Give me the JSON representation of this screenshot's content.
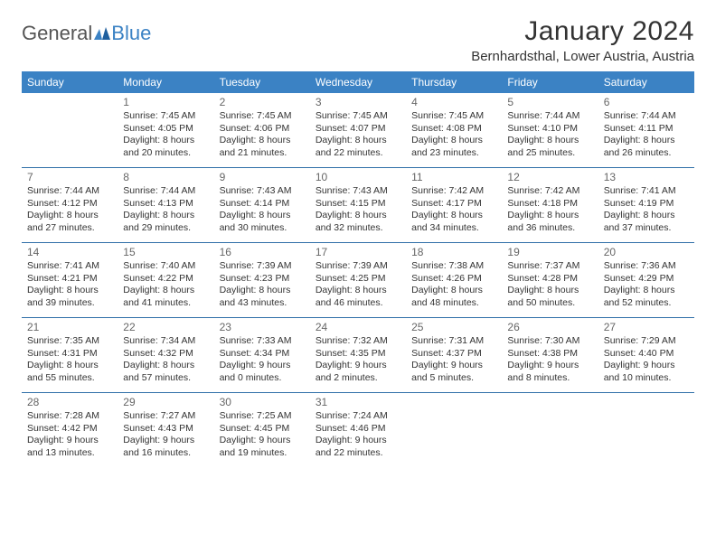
{
  "logo": {
    "part1": "General",
    "part2": "Blue"
  },
  "title": "January 2024",
  "location": "Bernhardsthal, Lower Austria, Austria",
  "colors": {
    "header_bg": "#3b82c4",
    "header_text": "#ffffff",
    "week_border": "#2f6fa8",
    "text": "#333333",
    "daynum": "#666666",
    "logo_gray": "#555555",
    "logo_blue": "#3b82c4",
    "page_bg": "#ffffff"
  },
  "day_names": [
    "Sunday",
    "Monday",
    "Tuesday",
    "Wednesday",
    "Thursday",
    "Friday",
    "Saturday"
  ],
  "weeks": [
    [
      null,
      {
        "n": "1",
        "sr": "Sunrise: 7:45 AM",
        "ss": "Sunset: 4:05 PM",
        "d1": "Daylight: 8 hours",
        "d2": "and 20 minutes."
      },
      {
        "n": "2",
        "sr": "Sunrise: 7:45 AM",
        "ss": "Sunset: 4:06 PM",
        "d1": "Daylight: 8 hours",
        "d2": "and 21 minutes."
      },
      {
        "n": "3",
        "sr": "Sunrise: 7:45 AM",
        "ss": "Sunset: 4:07 PM",
        "d1": "Daylight: 8 hours",
        "d2": "and 22 minutes."
      },
      {
        "n": "4",
        "sr": "Sunrise: 7:45 AM",
        "ss": "Sunset: 4:08 PM",
        "d1": "Daylight: 8 hours",
        "d2": "and 23 minutes."
      },
      {
        "n": "5",
        "sr": "Sunrise: 7:44 AM",
        "ss": "Sunset: 4:10 PM",
        "d1": "Daylight: 8 hours",
        "d2": "and 25 minutes."
      },
      {
        "n": "6",
        "sr": "Sunrise: 7:44 AM",
        "ss": "Sunset: 4:11 PM",
        "d1": "Daylight: 8 hours",
        "d2": "and 26 minutes."
      }
    ],
    [
      {
        "n": "7",
        "sr": "Sunrise: 7:44 AM",
        "ss": "Sunset: 4:12 PM",
        "d1": "Daylight: 8 hours",
        "d2": "and 27 minutes."
      },
      {
        "n": "8",
        "sr": "Sunrise: 7:44 AM",
        "ss": "Sunset: 4:13 PM",
        "d1": "Daylight: 8 hours",
        "d2": "and 29 minutes."
      },
      {
        "n": "9",
        "sr": "Sunrise: 7:43 AM",
        "ss": "Sunset: 4:14 PM",
        "d1": "Daylight: 8 hours",
        "d2": "and 30 minutes."
      },
      {
        "n": "10",
        "sr": "Sunrise: 7:43 AM",
        "ss": "Sunset: 4:15 PM",
        "d1": "Daylight: 8 hours",
        "d2": "and 32 minutes."
      },
      {
        "n": "11",
        "sr": "Sunrise: 7:42 AM",
        "ss": "Sunset: 4:17 PM",
        "d1": "Daylight: 8 hours",
        "d2": "and 34 minutes."
      },
      {
        "n": "12",
        "sr": "Sunrise: 7:42 AM",
        "ss": "Sunset: 4:18 PM",
        "d1": "Daylight: 8 hours",
        "d2": "and 36 minutes."
      },
      {
        "n": "13",
        "sr": "Sunrise: 7:41 AM",
        "ss": "Sunset: 4:19 PM",
        "d1": "Daylight: 8 hours",
        "d2": "and 37 minutes."
      }
    ],
    [
      {
        "n": "14",
        "sr": "Sunrise: 7:41 AM",
        "ss": "Sunset: 4:21 PM",
        "d1": "Daylight: 8 hours",
        "d2": "and 39 minutes."
      },
      {
        "n": "15",
        "sr": "Sunrise: 7:40 AM",
        "ss": "Sunset: 4:22 PM",
        "d1": "Daylight: 8 hours",
        "d2": "and 41 minutes."
      },
      {
        "n": "16",
        "sr": "Sunrise: 7:39 AM",
        "ss": "Sunset: 4:23 PM",
        "d1": "Daylight: 8 hours",
        "d2": "and 43 minutes."
      },
      {
        "n": "17",
        "sr": "Sunrise: 7:39 AM",
        "ss": "Sunset: 4:25 PM",
        "d1": "Daylight: 8 hours",
        "d2": "and 46 minutes."
      },
      {
        "n": "18",
        "sr": "Sunrise: 7:38 AM",
        "ss": "Sunset: 4:26 PM",
        "d1": "Daylight: 8 hours",
        "d2": "and 48 minutes."
      },
      {
        "n": "19",
        "sr": "Sunrise: 7:37 AM",
        "ss": "Sunset: 4:28 PM",
        "d1": "Daylight: 8 hours",
        "d2": "and 50 minutes."
      },
      {
        "n": "20",
        "sr": "Sunrise: 7:36 AM",
        "ss": "Sunset: 4:29 PM",
        "d1": "Daylight: 8 hours",
        "d2": "and 52 minutes."
      }
    ],
    [
      {
        "n": "21",
        "sr": "Sunrise: 7:35 AM",
        "ss": "Sunset: 4:31 PM",
        "d1": "Daylight: 8 hours",
        "d2": "and 55 minutes."
      },
      {
        "n": "22",
        "sr": "Sunrise: 7:34 AM",
        "ss": "Sunset: 4:32 PM",
        "d1": "Daylight: 8 hours",
        "d2": "and 57 minutes."
      },
      {
        "n": "23",
        "sr": "Sunrise: 7:33 AM",
        "ss": "Sunset: 4:34 PM",
        "d1": "Daylight: 9 hours",
        "d2": "and 0 minutes."
      },
      {
        "n": "24",
        "sr": "Sunrise: 7:32 AM",
        "ss": "Sunset: 4:35 PM",
        "d1": "Daylight: 9 hours",
        "d2": "and 2 minutes."
      },
      {
        "n": "25",
        "sr": "Sunrise: 7:31 AM",
        "ss": "Sunset: 4:37 PM",
        "d1": "Daylight: 9 hours",
        "d2": "and 5 minutes."
      },
      {
        "n": "26",
        "sr": "Sunrise: 7:30 AM",
        "ss": "Sunset: 4:38 PM",
        "d1": "Daylight: 9 hours",
        "d2": "and 8 minutes."
      },
      {
        "n": "27",
        "sr": "Sunrise: 7:29 AM",
        "ss": "Sunset: 4:40 PM",
        "d1": "Daylight: 9 hours",
        "d2": "and 10 minutes."
      }
    ],
    [
      {
        "n": "28",
        "sr": "Sunrise: 7:28 AM",
        "ss": "Sunset: 4:42 PM",
        "d1": "Daylight: 9 hours",
        "d2": "and 13 minutes."
      },
      {
        "n": "29",
        "sr": "Sunrise: 7:27 AM",
        "ss": "Sunset: 4:43 PM",
        "d1": "Daylight: 9 hours",
        "d2": "and 16 minutes."
      },
      {
        "n": "30",
        "sr": "Sunrise: 7:25 AM",
        "ss": "Sunset: 4:45 PM",
        "d1": "Daylight: 9 hours",
        "d2": "and 19 minutes."
      },
      {
        "n": "31",
        "sr": "Sunrise: 7:24 AM",
        "ss": "Sunset: 4:46 PM",
        "d1": "Daylight: 9 hours",
        "d2": "and 22 minutes."
      },
      null,
      null,
      null
    ]
  ]
}
